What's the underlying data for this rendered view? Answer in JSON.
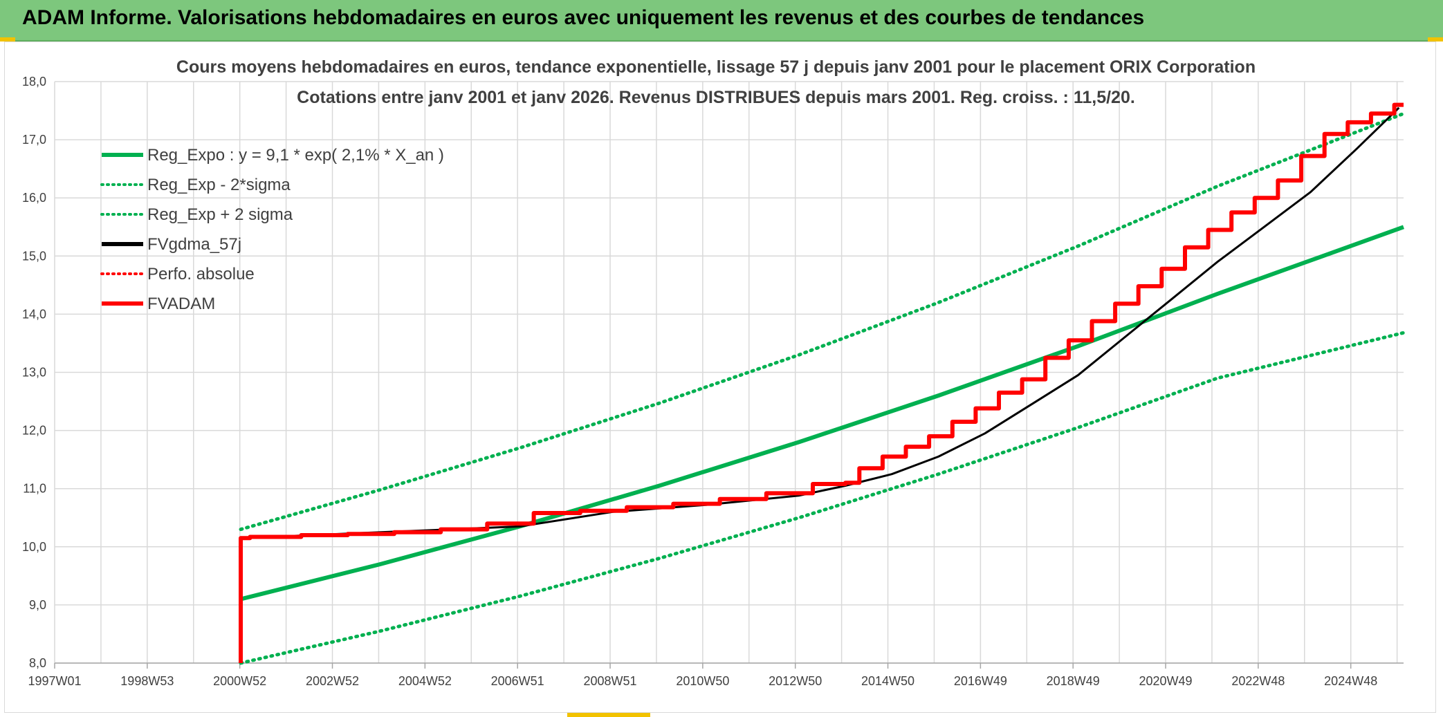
{
  "header": {
    "title": "ADAM Informe. Valorisations hebdomadaires en euros avec uniquement les revenus et des courbes de tendances"
  },
  "chart_data": {
    "type": "line",
    "title": "Cours moyens hebdomadaires en euros, tendance exponentielle, lissage 57 j depuis janv 2001 pour le placement ORIX Corporation",
    "subtitle": "Cotations entre janv 2001 et janv 2026. Revenus DISTRIBUES depuis mars 2001. Reg. croiss. : 11,5/20.",
    "xlabel": "",
    "ylabel": "",
    "x_tick_labels": [
      "1997W01",
      "1998W53",
      "2000W52",
      "2002W52",
      "2004W52",
      "2006W51",
      "2008W51",
      "2010W50",
      "2012W50",
      "2014W50",
      "2016W49",
      "2018W49",
      "2020W49",
      "2022W48",
      "2024W48"
    ],
    "x_range_years": [
      1997.0,
      2026.0
    ],
    "y_tick_labels": [
      "8,0",
      "9,0",
      "10,0",
      "11,0",
      "12,0",
      "13,0",
      "14,0",
      "15,0",
      "16,0",
      "17,0",
      "18,0"
    ],
    "ylim": [
      8,
      18
    ],
    "grid": true,
    "legend_position": "top-left",
    "series": [
      {
        "name": "Reg_Expo : y = 9,1 * exp( 2,1% *  X_an )",
        "color": "#00b050",
        "style": "solid",
        "x": [
          2001,
          2004,
          2007,
          2010,
          2013,
          2016,
          2019,
          2022,
          2026
        ],
        "y": [
          9.1,
          9.7,
          10.35,
          11.05,
          11.8,
          12.6,
          13.45,
          14.35,
          15.5
        ]
      },
      {
        "name": "Reg_Exp - 2*sigma",
        "color": "#00b050",
        "style": "dotted",
        "x": [
          2001,
          2004,
          2007,
          2010,
          2013,
          2016,
          2019,
          2022,
          2026
        ],
        "y": [
          8.0,
          8.55,
          9.15,
          9.8,
          10.5,
          11.25,
          12.05,
          12.9,
          13.68
        ]
      },
      {
        "name": "Reg_Exp + 2 sigma",
        "color": "#00b050",
        "style": "dotted",
        "x": [
          2001,
          2004,
          2007,
          2010,
          2013,
          2016,
          2019,
          2022,
          2026
        ],
        "y": [
          10.3,
          10.98,
          11.7,
          12.47,
          13.3,
          14.2,
          15.17,
          16.2,
          17.45
        ]
      },
      {
        "name": "FVgdma_57j",
        "color": "#000000",
        "style": "solid",
        "x": [
          2001.0,
          2007.0,
          2009.0,
          2011.0,
          2013.0,
          2014.0,
          2015.0,
          2016.0,
          2017.0,
          2018.0,
          2019.0,
          2020.0,
          2021.0,
          2022.0,
          2023.0,
          2024.0,
          2025.0,
          2025.9
        ],
        "y": [
          10.15,
          10.35,
          10.6,
          10.72,
          10.88,
          11.05,
          11.25,
          11.55,
          11.95,
          12.45,
          12.95,
          13.6,
          14.25,
          14.9,
          15.5,
          16.1,
          16.85,
          17.55
        ]
      },
      {
        "name": "Perfo. absolue",
        "color": "#ff0000",
        "style": "dotted",
        "x": [],
        "y": []
      },
      {
        "name": "FVADAM",
        "color": "#ff0000",
        "style": "solid",
        "x": [
          2001.0,
          2001.0,
          2001.2,
          2002.3,
          2003.3,
          2004.3,
          2005.3,
          2006.3,
          2007.3,
          2008.3,
          2009.3,
          2010.3,
          2011.3,
          2012.3,
          2013.3,
          2014.0,
          2014.3,
          2014.8,
          2015.3,
          2015.8,
          2016.3,
          2016.8,
          2017.3,
          2017.8,
          2018.3,
          2018.8,
          2019.3,
          2019.8,
          2020.3,
          2020.8,
          2021.3,
          2021.8,
          2022.3,
          2022.8,
          2023.3,
          2023.8,
          2024.3,
          2024.8,
          2025.3,
          2025.8,
          2026.0
        ],
        "y": [
          8.0,
          10.15,
          10.17,
          10.2,
          10.22,
          10.25,
          10.3,
          10.4,
          10.58,
          10.62,
          10.68,
          10.74,
          10.82,
          10.92,
          11.08,
          11.1,
          11.35,
          11.55,
          11.72,
          11.9,
          12.15,
          12.38,
          12.65,
          12.88,
          13.25,
          13.55,
          13.88,
          14.18,
          14.48,
          14.78,
          15.15,
          15.45,
          15.75,
          16.0,
          16.3,
          16.72,
          17.1,
          17.3,
          17.45,
          17.6,
          17.6
        ]
      }
    ]
  }
}
